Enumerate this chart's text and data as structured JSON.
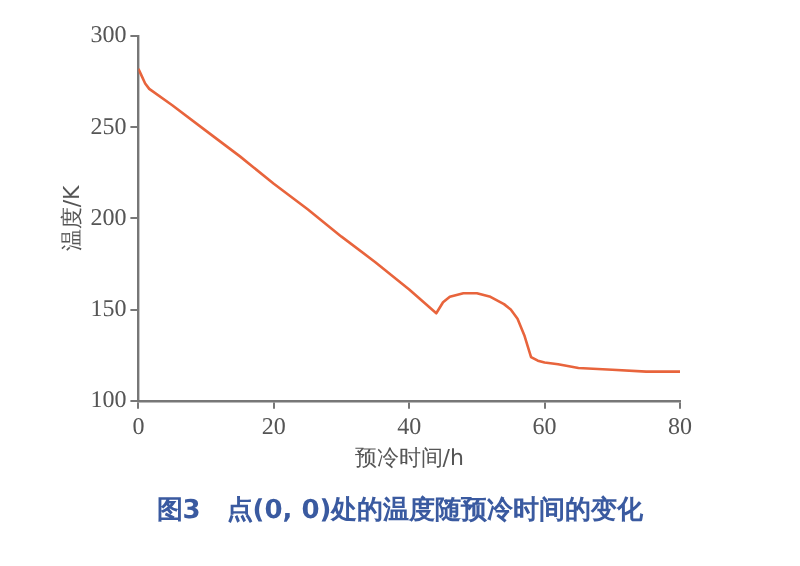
{
  "chart_data": {
    "type": "line",
    "title": "图3　点(0, 0)处的温度随预冷时间的变化",
    "xlabel": "预冷时间/h",
    "ylabel": "温度/K",
    "series": [
      {
        "color": "#e8643c",
        "x": [
          0,
          0.5,
          1,
          1.6,
          5,
          10,
          15,
          20,
          25,
          30,
          35,
          40,
          44,
          45,
          46,
          48,
          50,
          52,
          54,
          55,
          56,
          57,
          57.5,
          58,
          59,
          60,
          62,
          65,
          70,
          75,
          80
        ],
        "values": [
          282,
          278,
          274,
          271,
          262,
          248,
          234,
          219,
          205,
          190,
          176,
          161,
          148,
          154,
          157,
          159,
          159,
          157,
          153,
          150,
          145,
          136,
          130,
          124,
          122,
          121,
          120,
          118,
          117,
          116,
          116
        ]
      }
    ],
    "xlim": [
      0,
      80
    ],
    "xticks": [
      0,
      20,
      40,
      60,
      80
    ],
    "ylim": [
      100,
      300
    ],
    "yticks": [
      100,
      150,
      200,
      250,
      300
    ],
    "grid": false,
    "legend": false,
    "marker": "none",
    "line_style": "solid"
  }
}
